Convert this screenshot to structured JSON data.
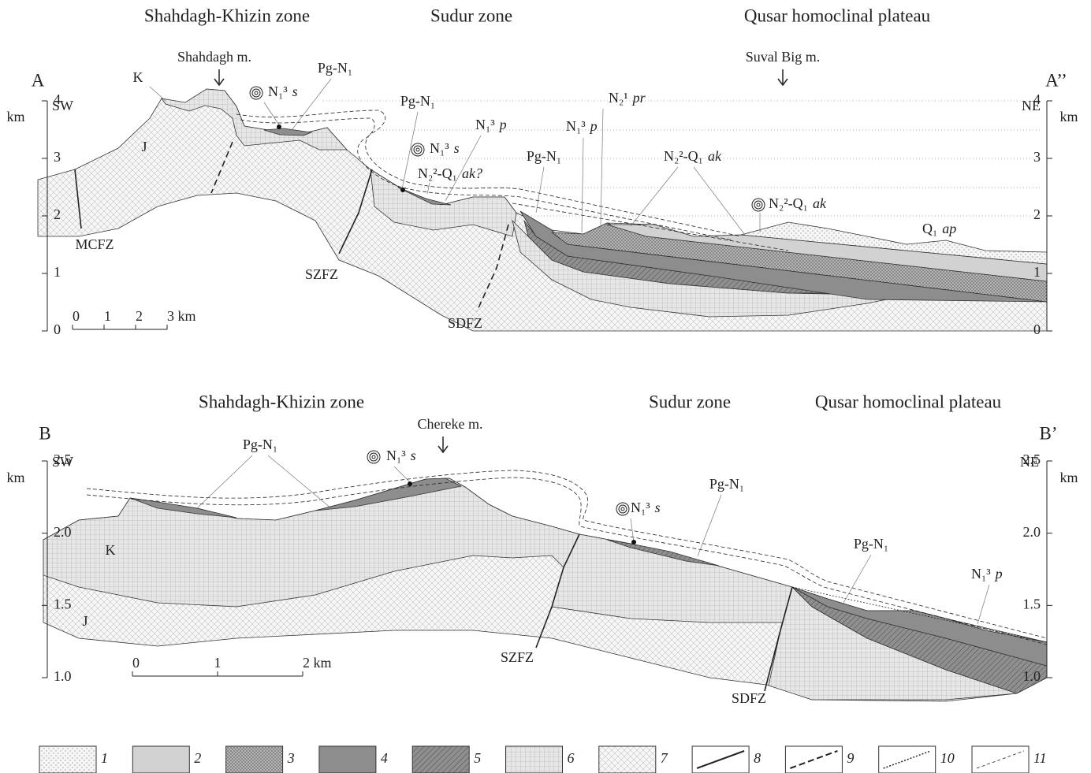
{
  "section_a": {
    "zones": [
      "Shahdagh-Khizin zone",
      "Sudur zone",
      "Qusar homoclinal plateau"
    ],
    "ends": [
      "A",
      "A’’"
    ],
    "directions": [
      "SW",
      "NE"
    ],
    "unit": "km",
    "axis_ticks": [
      "0",
      "1",
      "2",
      "3",
      "4"
    ],
    "localities": [
      "Shahdagh m.",
      "Suval Big m."
    ],
    "units": [
      {
        "text": "K"
      },
      {
        "text": "J"
      },
      {
        "text": "Pg-N₁"
      },
      {
        "text": "N₁³",
        "italic": "s"
      },
      {
        "text": "Pg-N₁"
      },
      {
        "text": "N₁³",
        "italic": "p"
      },
      {
        "text": "N₁³",
        "italic": "s"
      },
      {
        "text": "N₂²-Q₁",
        "italic": "ak?"
      },
      {
        "text": "Pg-N₁"
      },
      {
        "text": "N₁³",
        "italic": "p"
      },
      {
        "text": "N₂¹",
        "italic": "pr"
      },
      {
        "text": "N₂²-Q₁",
        "italic": "ak"
      },
      {
        "text": "N₂²-Q₁",
        "italic": "ak"
      },
      {
        "text": "Q₁",
        "italic": "ap"
      }
    ],
    "faults": [
      "MCFZ",
      "SZFZ",
      "SDFZ"
    ],
    "scale_bar": [
      "0",
      "1",
      "2",
      "3 km"
    ]
  },
  "section_b": {
    "zones": [
      "Shahdagh-Khizin zone",
      "Sudur zone",
      "Qusar homoclinal plateau"
    ],
    "ends": [
      "B",
      "B’"
    ],
    "directions": [
      "SW",
      "NE"
    ],
    "unit": "km",
    "axis_ticks": [
      "1.0",
      "1.5",
      "2.0",
      "2.5"
    ],
    "localities": [
      "Chereke m."
    ],
    "units": [
      {
        "text": "Pg-N₁"
      },
      {
        "text": "N₁³",
        "italic": "s"
      },
      {
        "text": "N₁³",
        "italic": "s"
      },
      {
        "text": "Pg-N₁"
      },
      {
        "text": "Pg-N₁"
      },
      {
        "text": "N₁³",
        "italic": "p"
      },
      {
        "text": "K"
      },
      {
        "text": "J"
      }
    ],
    "faults": [
      "SZFZ",
      "SDFZ"
    ],
    "scale_bar": [
      "0",
      "1",
      "2 km"
    ]
  },
  "legend": [
    "1",
    "2",
    "3",
    "4",
    "5",
    "6",
    "7",
    "8",
    "9",
    "10",
    "11"
  ]
}
